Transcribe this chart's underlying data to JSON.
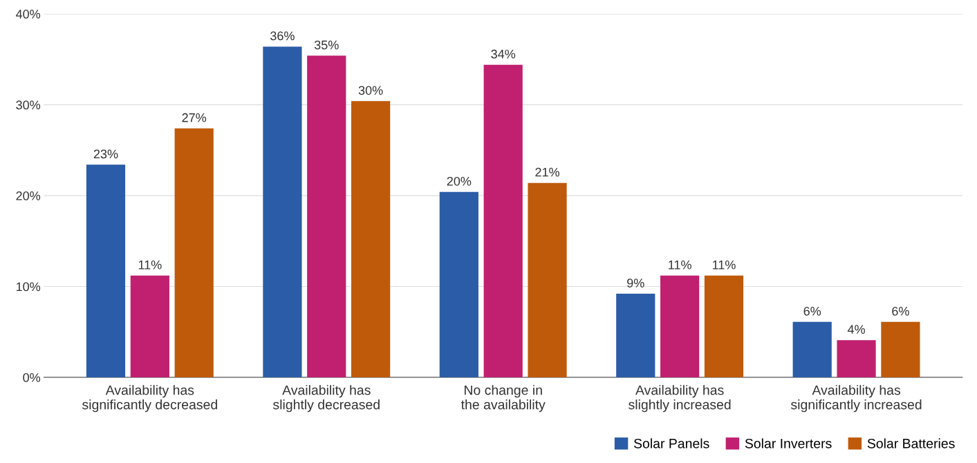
{
  "chart_data": {
    "type": "bar",
    "categories": [
      "Availability has\nsignificantly decreased",
      "Availability has\nslightly decreased",
      "No change in\nthe availability",
      "Availability has\nslightly increased",
      "Availability has\nsignificantly increased"
    ],
    "series": [
      {
        "name": "Solar Panels",
        "color": "#2b5ca8",
        "values": [
          23.4,
          36.4,
          20.4,
          9.2,
          6.1
        ],
        "value_labels": [
          "23%",
          "36%",
          "20%",
          "9%",
          "6%"
        ]
      },
      {
        "name": "Solar Inverters",
        "color": "#c0206f",
        "values": [
          11.2,
          35.4,
          34.4,
          11.2,
          4.1
        ],
        "value_labels": [
          "11%",
          "35%",
          "34%",
          "11%",
          "4%"
        ]
      },
      {
        "name": "Solar Batteries",
        "color": "#bf5a0a",
        "values": [
          27.4,
          30.4,
          21.4,
          11.2,
          6.1
        ],
        "value_labels": [
          "27%",
          "30%",
          "21%",
          "11%",
          "6%"
        ]
      }
    ],
    "ylim": [
      0,
      40
    ],
    "yticks": [
      {
        "value": 0,
        "label": "0%"
      },
      {
        "value": 10,
        "label": "10%"
      },
      {
        "value": 20,
        "label": "20%"
      },
      {
        "value": 30,
        "label": "30%"
      },
      {
        "value": 40,
        "label": "40%"
      }
    ],
    "grid": "y",
    "legend": "bottom right"
  }
}
